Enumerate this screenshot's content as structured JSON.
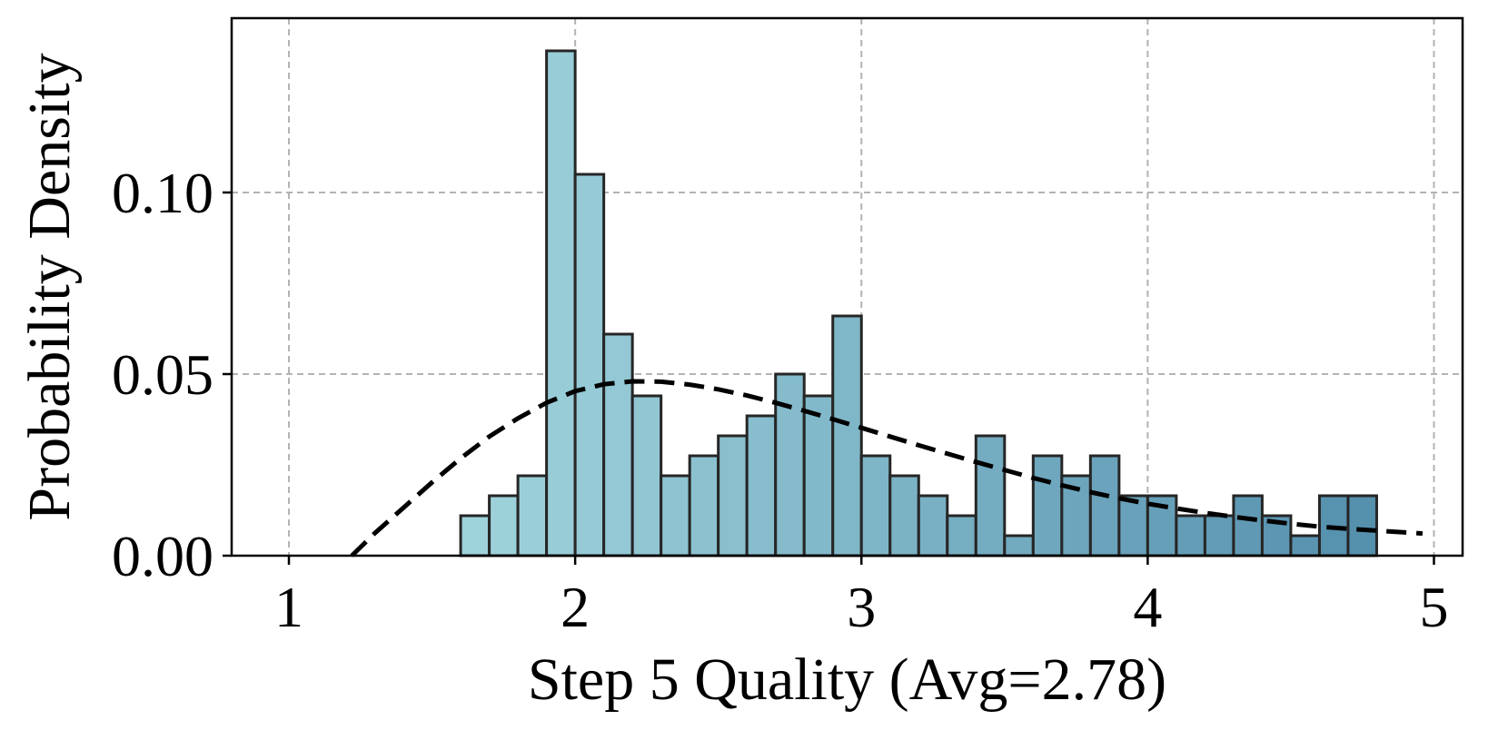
{
  "chart_data": {
    "type": "bar",
    "subtype": "histogram",
    "xlabel": "Step 5 Quality (Avg=2.78)",
    "ylabel": "Probability Density",
    "xlim": [
      0.8,
      5.1
    ],
    "ylim": [
      0,
      0.148
    ],
    "x_ticks": [
      1,
      2,
      3,
      4,
      5
    ],
    "x_tick_labels": [
      "1",
      "2",
      "3",
      "4",
      "5"
    ],
    "y_ticks": [
      0.0,
      0.05,
      0.1
    ],
    "y_tick_labels": [
      "0.00",
      "0.05",
      "0.10"
    ],
    "grid": true,
    "bin_width": 0.1,
    "bins": [
      {
        "x0": 1.6,
        "value": 0.011
      },
      {
        "x0": 1.7,
        "value": 0.0165
      },
      {
        "x0": 1.8,
        "value": 0.022
      },
      {
        "x0": 1.9,
        "value": 0.139
      },
      {
        "x0": 2.0,
        "value": 0.105
      },
      {
        "x0": 2.1,
        "value": 0.061
      },
      {
        "x0": 2.2,
        "value": 0.044
      },
      {
        "x0": 2.3,
        "value": 0.022
      },
      {
        "x0": 2.4,
        "value": 0.0275
      },
      {
        "x0": 2.5,
        "value": 0.033
      },
      {
        "x0": 2.6,
        "value": 0.0385
      },
      {
        "x0": 2.7,
        "value": 0.05
      },
      {
        "x0": 2.8,
        "value": 0.044
      },
      {
        "x0": 2.9,
        "value": 0.066
      },
      {
        "x0": 3.0,
        "value": 0.0275
      },
      {
        "x0": 3.1,
        "value": 0.022
      },
      {
        "x0": 3.2,
        "value": 0.0165
      },
      {
        "x0": 3.3,
        "value": 0.011
      },
      {
        "x0": 3.4,
        "value": 0.033
      },
      {
        "x0": 3.5,
        "value": 0.0055
      },
      {
        "x0": 3.6,
        "value": 0.0275
      },
      {
        "x0": 3.7,
        "value": 0.022
      },
      {
        "x0": 3.8,
        "value": 0.0275
      },
      {
        "x0": 3.9,
        "value": 0.0165
      },
      {
        "x0": 4.0,
        "value": 0.0165
      },
      {
        "x0": 4.1,
        "value": 0.011
      },
      {
        "x0": 4.2,
        "value": 0.011
      },
      {
        "x0": 4.3,
        "value": 0.0165
      },
      {
        "x0": 4.4,
        "value": 0.011
      },
      {
        "x0": 4.5,
        "value": 0.0055
      },
      {
        "x0": 4.6,
        "value": 0.0165
      },
      {
        "x0": 4.7,
        "value": 0.0165
      }
    ],
    "bar_color_start": "#9fd3dc",
    "bar_color_end": "#5590ad",
    "bar_edge_color": "#262626",
    "fit_curve": {
      "style": "dashed",
      "color": "#000000",
      "points": [
        [
          1.22,
          0.0
        ],
        [
          1.3,
          0.0062
        ],
        [
          1.4,
          0.0132
        ],
        [
          1.5,
          0.0202
        ],
        [
          1.6,
          0.0268
        ],
        [
          1.7,
          0.0328
        ],
        [
          1.8,
          0.0378
        ],
        [
          1.9,
          0.0421
        ],
        [
          2.0,
          0.0453
        ],
        [
          2.1,
          0.0472
        ],
        [
          2.2,
          0.048
        ],
        [
          2.3,
          0.0479
        ],
        [
          2.4,
          0.0471
        ],
        [
          2.5,
          0.0458
        ],
        [
          2.6,
          0.0441
        ],
        [
          2.7,
          0.0421
        ],
        [
          2.8,
          0.0399
        ],
        [
          2.9,
          0.0376
        ],
        [
          3.0,
          0.0352
        ],
        [
          3.1,
          0.0328
        ],
        [
          3.2,
          0.0304
        ],
        [
          3.3,
          0.0281
        ],
        [
          3.4,
          0.0258
        ],
        [
          3.5,
          0.0236
        ],
        [
          3.6,
          0.0214
        ],
        [
          3.7,
          0.0194
        ],
        [
          3.8,
          0.0175
        ],
        [
          3.9,
          0.0158
        ],
        [
          4.0,
          0.0143
        ],
        [
          4.1,
          0.013
        ],
        [
          4.2,
          0.0118
        ],
        [
          4.3,
          0.0107
        ],
        [
          4.4,
          0.0097
        ],
        [
          4.5,
          0.0088
        ],
        [
          4.6,
          0.008
        ],
        [
          4.7,
          0.0074
        ],
        [
          4.8,
          0.0069
        ],
        [
          4.9,
          0.0064
        ],
        [
          4.96,
          0.0061
        ]
      ]
    }
  }
}
